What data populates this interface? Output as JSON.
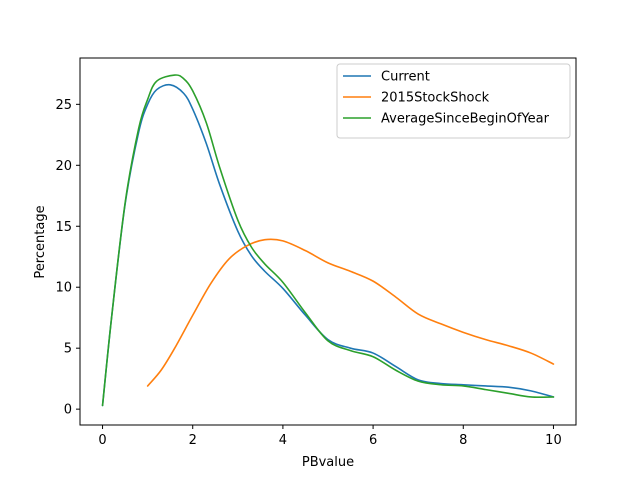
{
  "chart_data": {
    "type": "line",
    "title": "",
    "xlabel": "PBvalue",
    "ylabel": "Percentage",
    "xlim": [
      -0.5,
      10.5
    ],
    "ylim": [
      -1.3,
      28.8
    ],
    "xticks": [
      0,
      2,
      4,
      6,
      8,
      10
    ],
    "yticks": [
      0,
      5,
      10,
      15,
      20,
      25
    ],
    "grid": false,
    "legend_position": "upper right",
    "series": [
      {
        "name": "Current",
        "color": "#1f77b4",
        "x": [
          0,
          0.2,
          0.5,
          0.8,
          1.0,
          1.2,
          1.5,
          1.8,
          2.0,
          2.3,
          2.6,
          3.0,
          3.3,
          3.6,
          4.0,
          4.5,
          5.0,
          5.5,
          6.0,
          6.5,
          7.0,
          7.5,
          8.0,
          8.5,
          9.0,
          9.5,
          10.0
        ],
        "y": [
          0.3,
          7.5,
          16.8,
          22.7,
          25.0,
          26.2,
          26.6,
          25.9,
          24.6,
          21.8,
          18.4,
          14.6,
          12.6,
          11.3,
          9.9,
          7.7,
          5.7,
          5.0,
          4.6,
          3.5,
          2.4,
          2.1,
          2.0,
          1.9,
          1.8,
          1.5,
          1.0
        ]
      },
      {
        "name": "2015StockShock",
        "color": "#ff7f0e",
        "x": [
          1.0,
          1.3,
          1.6,
          2.0,
          2.4,
          2.8,
          3.2,
          3.6,
          4.0,
          4.5,
          5.0,
          5.5,
          6.0,
          6.5,
          7.0,
          7.5,
          8.0,
          8.5,
          9.0,
          9.5,
          10.0
        ],
        "y": [
          1.9,
          3.2,
          5.0,
          7.7,
          10.3,
          12.3,
          13.4,
          13.9,
          13.8,
          13.0,
          12.0,
          11.3,
          10.5,
          9.2,
          7.8,
          7.0,
          6.3,
          5.7,
          5.2,
          4.6,
          3.7
        ]
      },
      {
        "name": "AverageSinceBeginOfYear",
        "color": "#2ca02c",
        "x": [
          0,
          0.2,
          0.5,
          0.8,
          1.0,
          1.2,
          1.6,
          1.8,
          2.0,
          2.3,
          2.6,
          3.0,
          3.3,
          3.6,
          4.0,
          4.5,
          5.0,
          5.5,
          6.0,
          6.5,
          7.0,
          7.5,
          8.0,
          8.5,
          9.0,
          9.5,
          10.0
        ],
        "y": [
          0.3,
          7.5,
          16.9,
          23.0,
          25.4,
          26.9,
          27.4,
          27.1,
          26.1,
          23.5,
          19.8,
          15.5,
          13.3,
          11.9,
          10.4,
          7.9,
          5.6,
          4.8,
          4.3,
          3.2,
          2.3,
          2.0,
          1.9,
          1.6,
          1.3,
          1.0,
          1.0
        ]
      }
    ]
  }
}
